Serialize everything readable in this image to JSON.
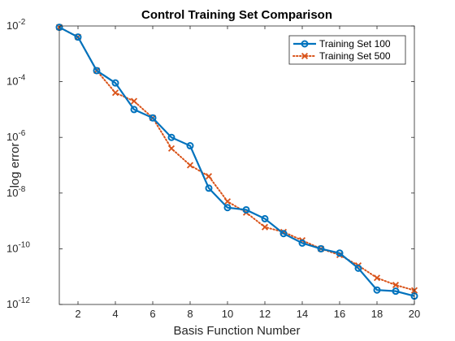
{
  "chart_data": {
    "type": "line",
    "title": "Control Training Set Comparison",
    "xlabel": "Basis Function Number",
    "ylabel": "log error",
    "xlim": [
      1,
      20
    ],
    "ylim": [
      1e-12,
      0.01
    ],
    "yscale": "log",
    "grid": false,
    "legend_position": "top-right",
    "x_ticks": [
      2,
      4,
      6,
      8,
      10,
      12,
      14,
      16,
      18,
      20
    ],
    "y_ticks": [
      {
        "value": 1e-12,
        "base": "10",
        "exp": "-12"
      },
      {
        "value": 1e-10,
        "base": "10",
        "exp": "-10"
      },
      {
        "value": 1e-08,
        "base": "10",
        "exp": "-8"
      },
      {
        "value": 1e-06,
        "base": "10",
        "exp": "-6"
      },
      {
        "value": 0.0001,
        "base": "10",
        "exp": "-4"
      },
      {
        "value": 0.01,
        "base": "10",
        "exp": "-2"
      }
    ],
    "x": [
      1,
      2,
      3,
      4,
      5,
      6,
      7,
      8,
      9,
      10,
      11,
      12,
      13,
      14,
      15,
      16,
      17,
      18,
      19,
      20
    ],
    "series": [
      {
        "name": "Training Set 100",
        "color": "#0072BD",
        "marker": "circle",
        "line": "solid",
        "values": [
          0.009,
          0.004,
          0.00025,
          9e-05,
          1e-05,
          5e-06,
          1e-06,
          5e-07,
          1.5e-08,
          3e-09,
          2.5e-09,
          1.2e-09,
          3.5e-10,
          1.6e-10,
          1e-10,
          7e-11,
          2e-11,
          3.3e-12,
          3e-12,
          2e-12
        ]
      },
      {
        "name": "Training Set 500",
        "color": "#D95319",
        "marker": "x",
        "line": "dotted",
        "values": [
          0.009,
          0.004,
          0.00025,
          4e-05,
          2e-05,
          5e-06,
          4e-07,
          1e-07,
          4e-08,
          5e-09,
          2e-09,
          6e-10,
          4e-10,
          2e-10,
          1e-10,
          6e-11,
          2.5e-11,
          9e-12,
          5e-12,
          3.2e-12
        ]
      }
    ]
  }
}
